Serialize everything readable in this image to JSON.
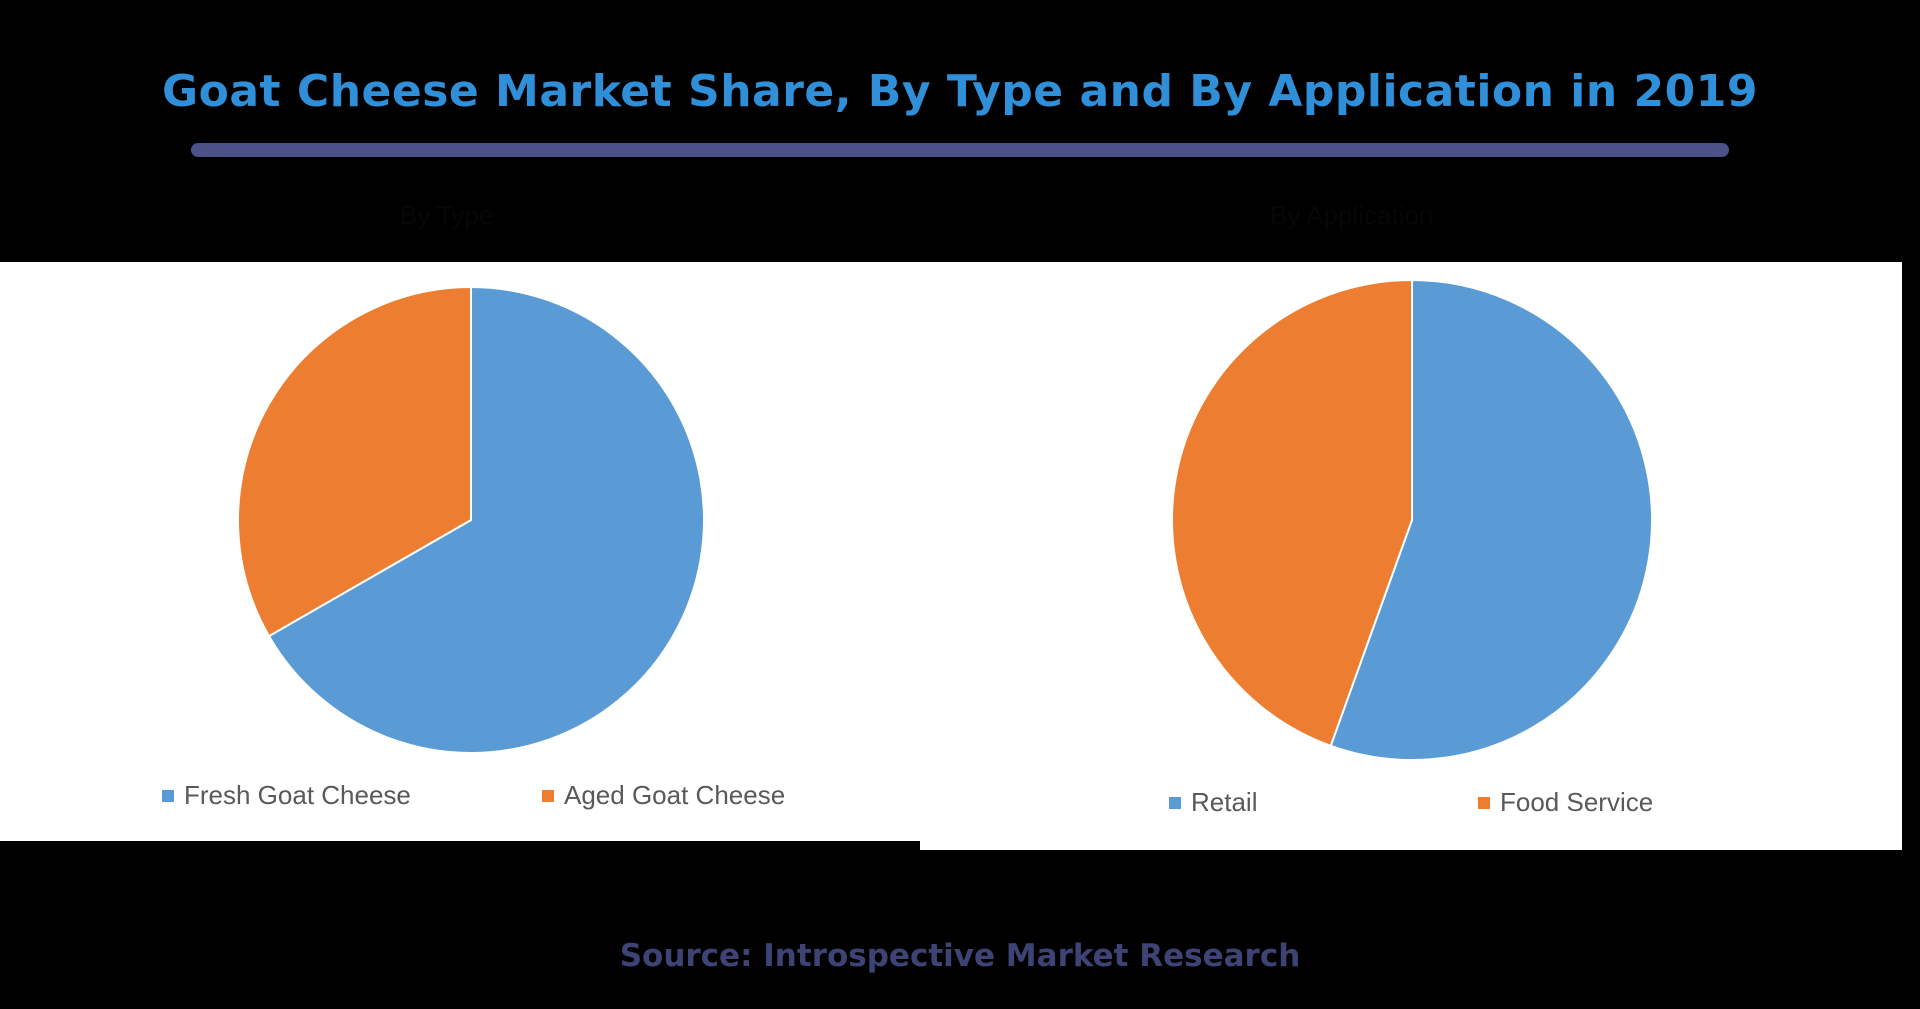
{
  "title": "Goat Cheese Market Share, By Type and By Application in 2019",
  "source": "Source: Introspective Market Research",
  "colors": {
    "blue": "#5b9bd5",
    "orange": "#ed7d31",
    "title": "#2f8fd8",
    "bar": "#4a5287"
  },
  "chart_data": [
    {
      "type": "pie",
      "title": "By Type",
      "categories": [
        "Fresh Goat Cheese",
        "Aged Goat Cheese"
      ],
      "values": [
        66.7,
        33.3
      ],
      "legend": "bottom"
    },
    {
      "type": "pie",
      "title": "By Application",
      "categories": [
        "Retail",
        "Food Service"
      ],
      "values": [
        55.5,
        44.5
      ],
      "legend": "bottom"
    }
  ]
}
